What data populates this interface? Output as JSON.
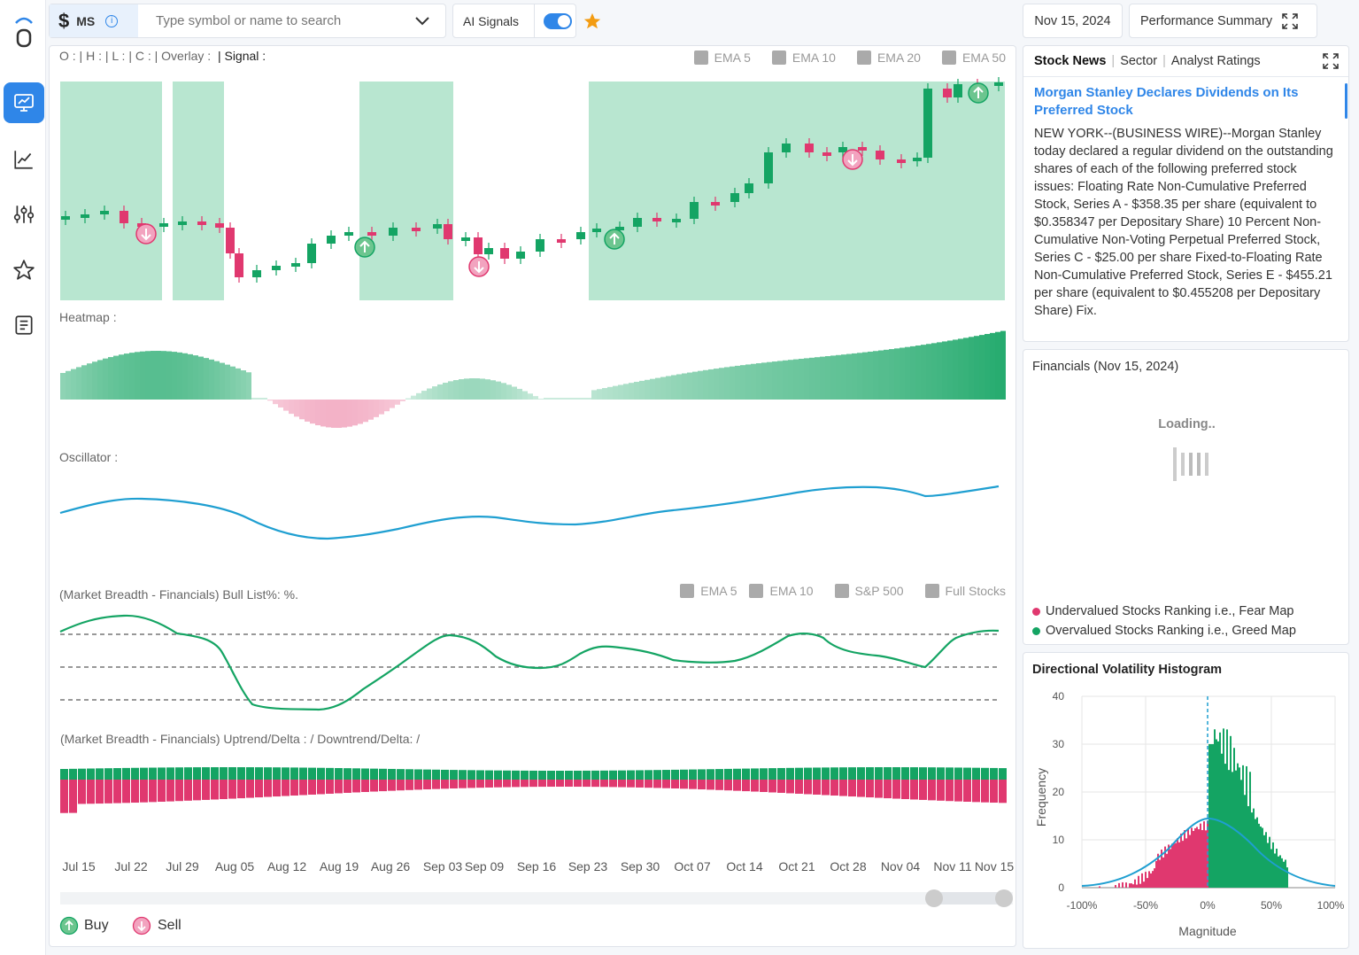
{
  "topbar": {
    "symbol": "MS",
    "search_placeholder": "Type symbol or name to search",
    "ai_signals_label": "AI Signals",
    "date": "Nov 15, 2024",
    "performance_label": "Performance Summary"
  },
  "chart": {
    "ohlc_label": "O : | H : | L : | C : | Overlay :",
    "signal_label": "| Signal :",
    "ema_legend": [
      "EMA 5",
      "EMA 10",
      "EMA 20",
      "EMA 50"
    ],
    "heatmap_label": "Heatmap :",
    "oscillator_label": "Oscillator :",
    "breadth_label": "(Market Breadth - Financials) Bull List%: %.",
    "breadth_legend": [
      "EMA 5",
      "EMA 10",
      "S&P 500",
      "Full Stocks"
    ],
    "delta_label": "(Market Breadth - Financials) Uptrend/Delta : /  Downtrend/Delta: /",
    "x_ticks": [
      "Jul 15",
      "Jul 22",
      "Jul 29",
      "Aug 05",
      "Aug 12",
      "Aug 19",
      "Aug 26",
      "Sep 03",
      "Sep 09",
      "Sep 16",
      "Sep 23",
      "Sep 30",
      "Oct 07",
      "Oct 14",
      "Oct 21",
      "Oct 28",
      "Nov 04",
      "Nov 11",
      "Nov 15"
    ],
    "buy_label": "Buy",
    "sell_label": "Sell",
    "colors": {
      "up": "#14a463",
      "down": "#e0386f",
      "band": "#b8e6d0",
      "line": "#1f9fd1"
    }
  },
  "news": {
    "tabs": [
      "Stock News",
      "Sector",
      "Analyst Ratings"
    ],
    "title": "Morgan Stanley Declares Dividends on Its Preferred Stock",
    "body": "NEW YORK--(BUSINESS WIRE)--Morgan Stanley today declared a regular dividend on the outstanding shares of each of the following preferred stock issues: Floating Rate Non-Cumulative Preferred Stock, Series A - $358.35 per share (equivalent to $0.358347 per Depositary Share) 10 Percent Non-Cumulative Non-Voting Perpetual Preferred Stock, Series C - $25.00 per share Fixed-to-Floating Rate Non-Cumulative Preferred Stock, Series E - $455.21 per share (equivalent to $0.455208 per Depositary Share) Fix."
  },
  "financials": {
    "title": "Financials (Nov 15, 2024)",
    "loading": "Loading..",
    "legend_fear": "Undervalued Stocks Ranking i.e., Fear Map",
    "legend_greed": "Overvalued Stocks Ranking i.e., Greed Map"
  },
  "histogram": {
    "title": "Directional Volatility Histogram",
    "y_label": "Frequency",
    "x_label": "Magnitude",
    "y_ticks": [
      "40",
      "30",
      "20",
      "10",
      "0"
    ],
    "x_ticks": [
      "-100%",
      "-50%",
      "0%",
      "50%",
      "100%"
    ]
  }
}
